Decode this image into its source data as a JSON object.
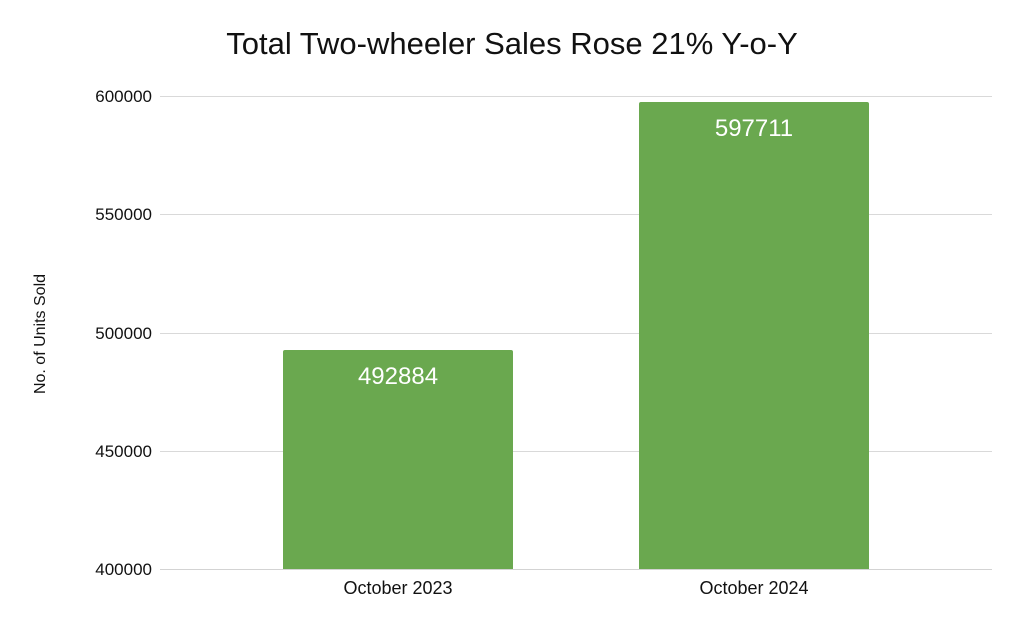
{
  "chart_data": {
    "type": "bar",
    "title": "Total Two-wheeler Sales Rose 21% Y-o-Y",
    "categories": [
      "October 2023",
      "October 2024"
    ],
    "values": [
      492884,
      597711
    ],
    "xlabel": "",
    "ylabel": "No. of Units Sold",
    "ylim": [
      400000,
      600000
    ],
    "yticks": [
      400000,
      450000,
      500000,
      550000,
      600000
    ],
    "grid": true,
    "legend": "none",
    "bar_color": "#6aa84f",
    "bar_label_color": "#ffffff",
    "gridline_color": "#d9d9d9",
    "text_color": "#111111",
    "background_color": "#ffffff"
  }
}
